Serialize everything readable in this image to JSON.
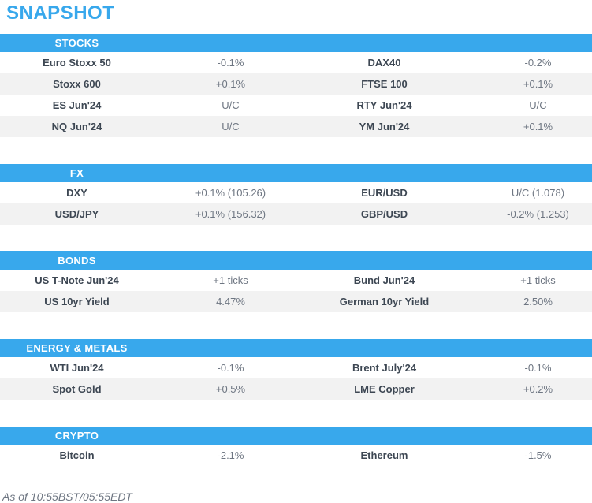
{
  "page": {
    "title": "SNAPSHOT",
    "footer": "As of 10:55BST/05:55EDT"
  },
  "colors": {
    "accent_blue": "#38a8ec",
    "row_alt_background": "#f2f2f2",
    "label_text": "#3d4753",
    "value_text": "#6e7682"
  },
  "sections": [
    {
      "name": "STOCKS",
      "rows": [
        {
          "label1": "Euro Stoxx 50",
          "value1": "-0.1%",
          "label2": "DAX40",
          "value2": "-0.2%"
        },
        {
          "label1": "Stoxx 600",
          "value1": "+0.1%",
          "label2": "FTSE 100",
          "value2": "+0.1%"
        },
        {
          "label1": "ES Jun'24",
          "value1": "U/C",
          "label2": "RTY Jun'24",
          "value2": "U/C"
        },
        {
          "label1": "NQ Jun'24",
          "value1": "U/C",
          "label2": "YM Jun'24",
          "value2": "+0.1%"
        }
      ]
    },
    {
      "name": "FX",
      "rows": [
        {
          "label1": "DXY",
          "value1": "+0.1% (105.26)",
          "label2": "EUR/USD",
          "value2": "U/C (1.078)"
        },
        {
          "label1": "USD/JPY",
          "value1": "+0.1% (156.32)",
          "label2": "GBP/USD",
          "value2": "-0.2% (1.253)"
        }
      ]
    },
    {
      "name": "BONDS",
      "rows": [
        {
          "label1": "US T-Note Jun'24",
          "value1": "+1 ticks",
          "label2": "Bund Jun'24",
          "value2": "+1 ticks"
        },
        {
          "label1": "US 10yr Yield",
          "value1": "4.47%",
          "label2": "German 10yr Yield",
          "value2": "2.50%"
        }
      ]
    },
    {
      "name": "ENERGY & METALS",
      "rows": [
        {
          "label1": "WTI Jun'24",
          "value1": "-0.1%",
          "label2": "Brent July'24",
          "value2": "-0.1%"
        },
        {
          "label1": "Spot Gold",
          "value1": "+0.5%",
          "label2": "LME Copper",
          "value2": "+0.2%"
        }
      ]
    },
    {
      "name": "CRYPTO",
      "rows": [
        {
          "label1": "Bitcoin",
          "value1": "-2.1%",
          "label2": "Ethereum",
          "value2": "-1.5%"
        }
      ]
    }
  ]
}
